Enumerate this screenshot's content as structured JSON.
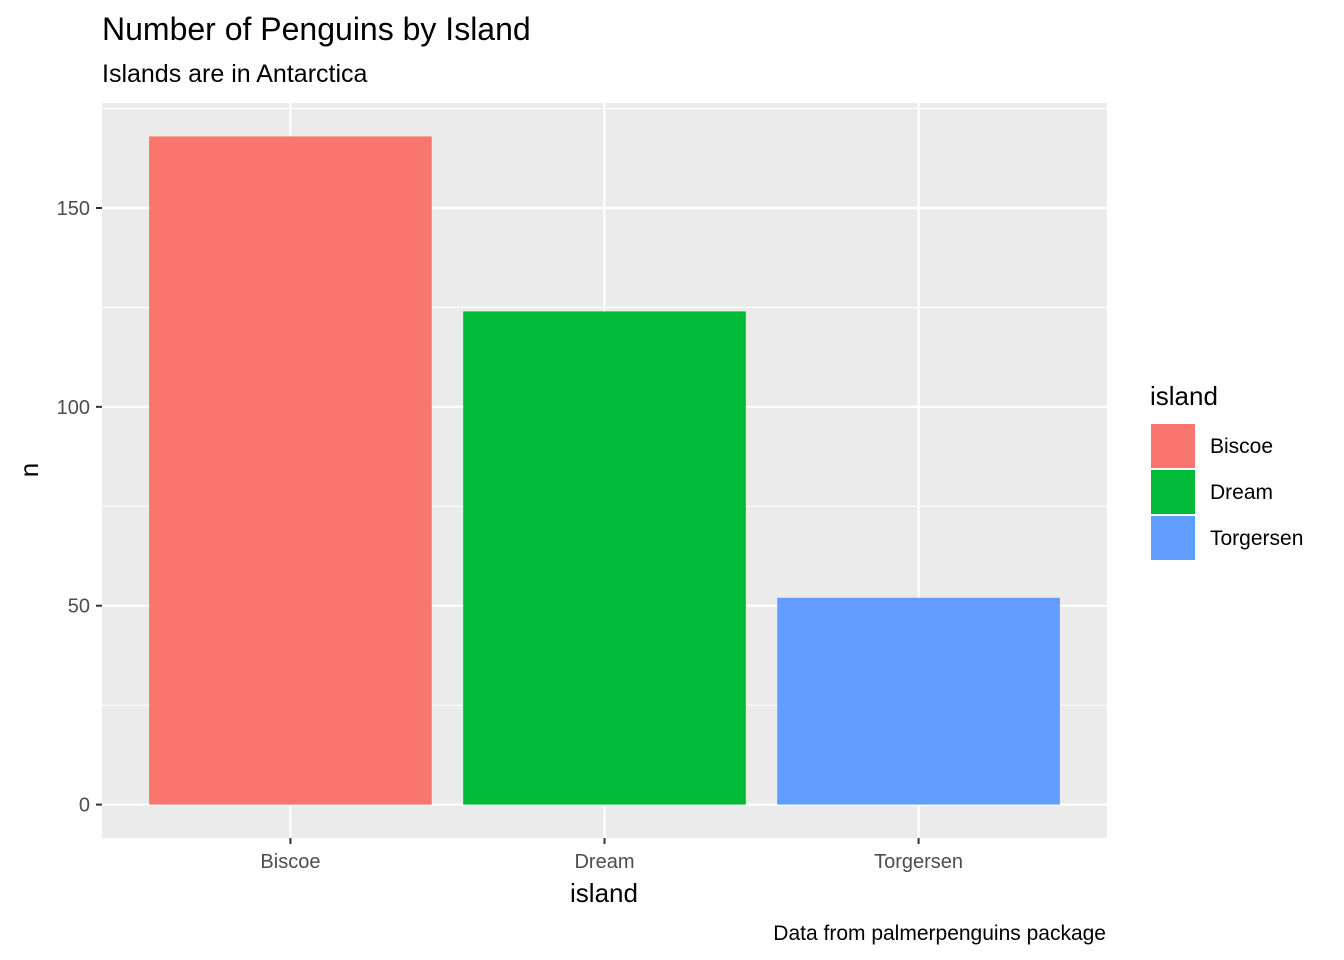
{
  "chart_data": {
    "type": "bar",
    "title": "Number of Penguins by Island",
    "subtitle": "Islands are in Antarctica",
    "caption": "Data from palmerpenguins package",
    "xlabel": "island",
    "ylabel": "n",
    "categories": [
      "Biscoe",
      "Dream",
      "Torgersen"
    ],
    "values": [
      168,
      124,
      52
    ],
    "colors": [
      "#F8766D",
      "#00BA38",
      "#619CFF"
    ],
    "ylim": [
      -8.4,
      176.4
    ],
    "yticks": [
      0,
      50,
      100,
      150
    ],
    "yticks_minor": [
      25,
      75,
      125,
      175
    ],
    "grid": true,
    "panel_background": "#EBEBEB",
    "grid_color": "#FFFFFF",
    "legend": {
      "title": "island",
      "position": "right",
      "entries": [
        "Biscoe",
        "Dream",
        "Torgersen"
      ]
    }
  }
}
